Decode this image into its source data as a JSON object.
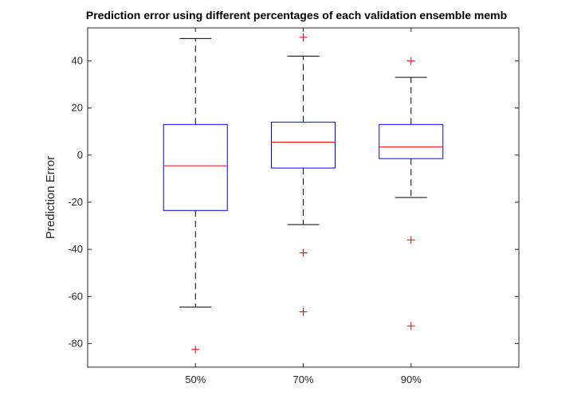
{
  "chart_data": {
    "type": "box",
    "title": "Prediction error using different percentages of each validation ensemble memb",
    "xlabel": "",
    "ylabel": "Prediction Error",
    "ylim": [
      -90,
      54
    ],
    "yticks": [
      -80,
      -60,
      -40,
      -20,
      0,
      20,
      40
    ],
    "grid": false,
    "categories": [
      "50%",
      "70%",
      "90%"
    ],
    "boxes": [
      {
        "category": "50%",
        "whisker_low": -64.5,
        "q1": -23.5,
        "median": -4.5,
        "q3": 13,
        "whisker_high": 49.5,
        "outliers": [
          -82.5
        ]
      },
      {
        "category": "70%",
        "whisker_low": -29.5,
        "q1": -5.5,
        "median": 5.5,
        "q3": 14,
        "whisker_high": 42,
        "outliers": [
          50,
          -41.5,
          -66.5
        ]
      },
      {
        "category": "90%",
        "whisker_low": -18,
        "q1": -1.5,
        "median": 3.5,
        "q3": 13,
        "whisker_high": 33,
        "outliers": [
          40,
          -36,
          -72.5
        ]
      }
    ],
    "colors": {
      "box": "#0000ff",
      "median": "#ff0000",
      "whisker": "#000000",
      "outlier": "#ff0000",
      "axis": "#262626"
    }
  }
}
